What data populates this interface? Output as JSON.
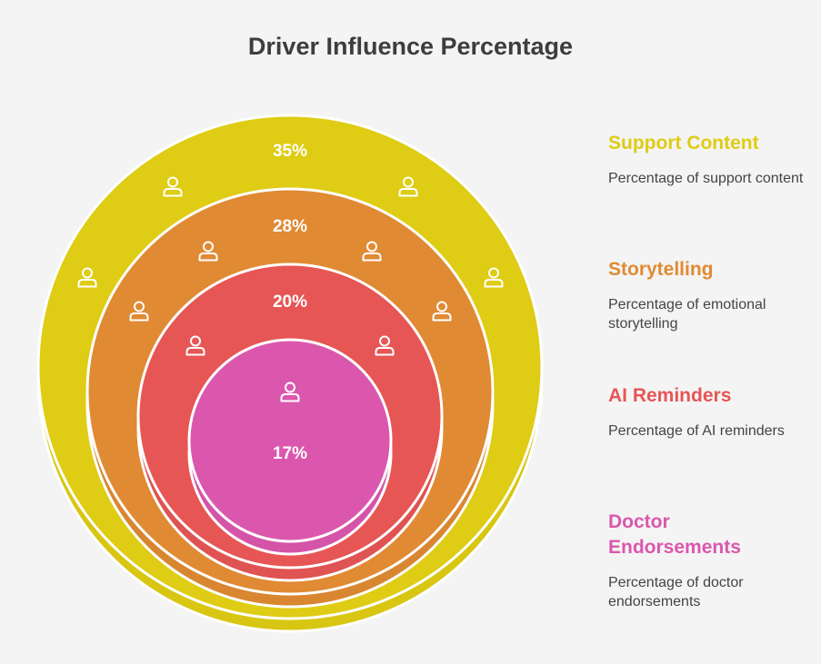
{
  "title": "Driver Influence Percentage",
  "colors": {
    "background": "#f4f4f4",
    "support_content": "#dfcc14",
    "storytelling": "#e08a33",
    "ai_reminders": "#e65655",
    "doctor_endorsements": "#db57ad"
  },
  "chart_data": {
    "type": "nested-circles",
    "title": "Driver Influence Percentage",
    "rings": [
      {
        "name": "Support Content",
        "value": 35,
        "label": "35%",
        "description": "Percentage of support content",
        "color": "#dfcc14"
      },
      {
        "name": "Storytelling",
        "value": 28,
        "label": "28%",
        "description": "Percentage of emotional storytelling",
        "color": "#e08a33"
      },
      {
        "name": "AI Reminders",
        "value": 20,
        "label": "20%",
        "description": "Percentage of AI reminders",
        "color": "#e65655"
      },
      {
        "name": "Doctor Endorsements",
        "value": 17,
        "label": "17%",
        "description": "Percentage of doctor endorsements",
        "color": "#db57ad"
      }
    ]
  },
  "icons": [
    "person-icon"
  ]
}
